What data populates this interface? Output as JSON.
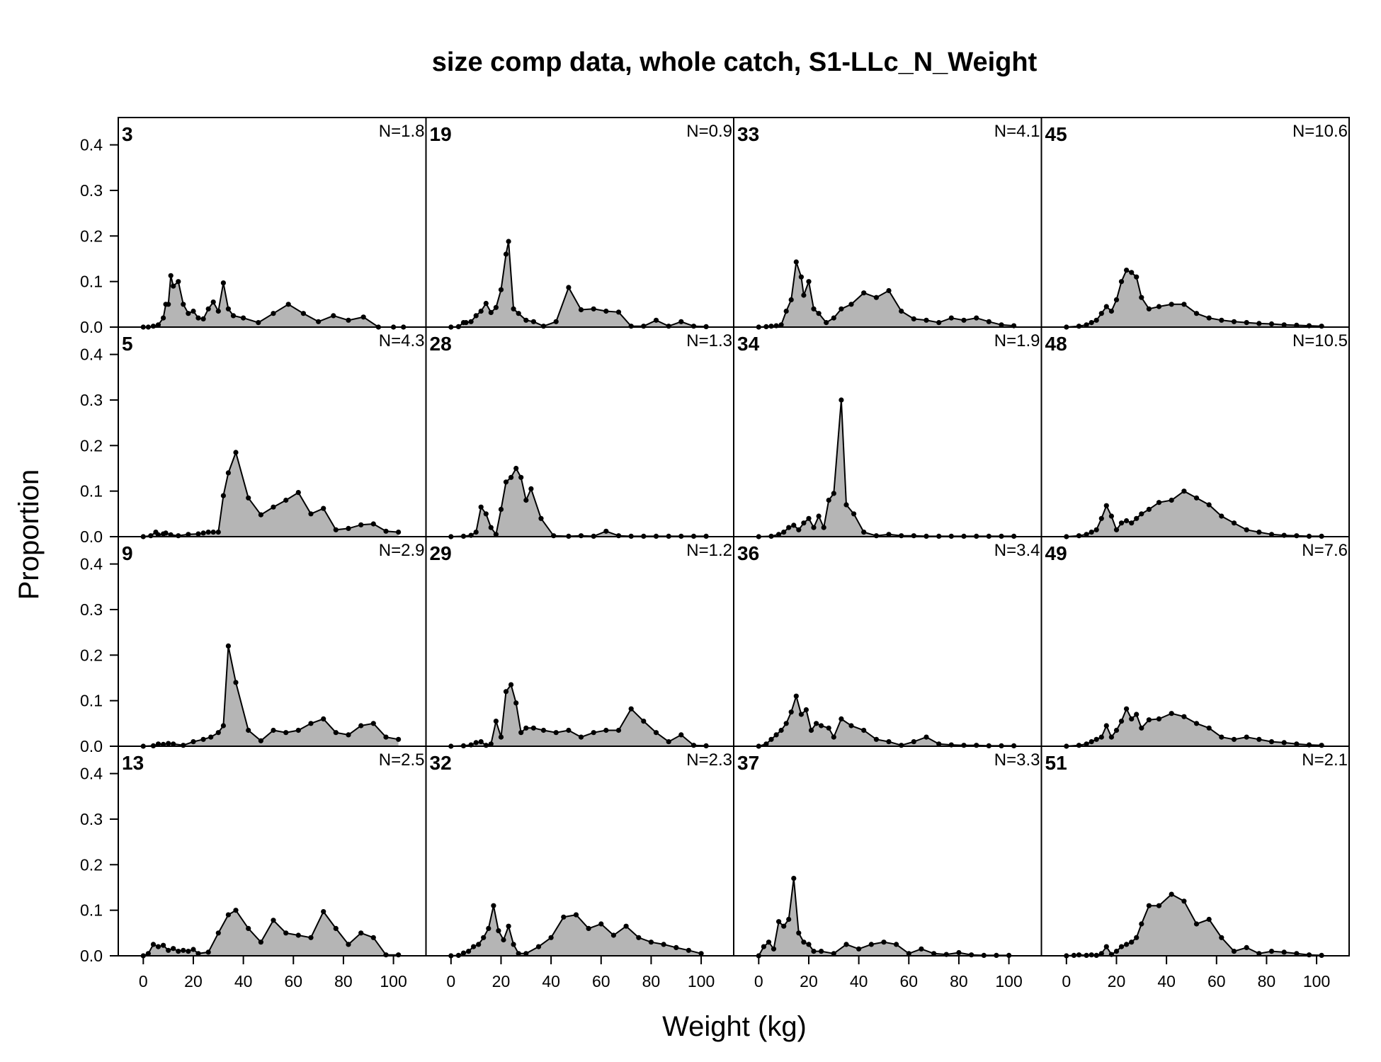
{
  "chart_data": {
    "type": "area",
    "title": "size comp data, whole catch, S1-LLc_N_Weight",
    "xlabel": "Weight (kg)",
    "ylabel": "Proportion",
    "xlim": [
      -10,
      113
    ],
    "ylim": [
      0,
      0.46
    ],
    "x_ticks": [
      0,
      20,
      40,
      60,
      80,
      100
    ],
    "y_ticks": [
      0.0,
      0.1,
      0.2,
      0.3,
      0.4
    ],
    "y_tick_labels": [
      "0.0",
      "0.1",
      "0.2",
      "0.3",
      "0.4"
    ],
    "layout": {
      "rows": 4,
      "cols": 4,
      "order": "column-major"
    },
    "fill_color": "#b5b5b5",
    "line_color": "#000000",
    "panels": [
      {
        "id": "3",
        "n_label": "N=1.8",
        "x": [
          0,
          2,
          4,
          6,
          8,
          9,
          10,
          11,
          12,
          14,
          16,
          18,
          20,
          22,
          24,
          26,
          28,
          30,
          32,
          34,
          36,
          40,
          46,
          52,
          58,
          64,
          70,
          76,
          82,
          88,
          94,
          100,
          104
        ],
        "y": [
          0,
          0,
          0.002,
          0.005,
          0.02,
          0.05,
          0.05,
          0.113,
          0.09,
          0.1,
          0.05,
          0.03,
          0.035,
          0.02,
          0.018,
          0.04,
          0.055,
          0.035,
          0.097,
          0.04,
          0.025,
          0.02,
          0.01,
          0.03,
          0.05,
          0.03,
          0.012,
          0.025,
          0.015,
          0.022,
          0,
          0,
          0
        ]
      },
      {
        "id": "5",
        "n_label": "N=4.3",
        "x": [
          0,
          3,
          5,
          6,
          8,
          9,
          11,
          14,
          18,
          22,
          24,
          26,
          28,
          30,
          32,
          34,
          37,
          42,
          47,
          52,
          57,
          62,
          67,
          72,
          77,
          82,
          87,
          92,
          97,
          102
        ],
        "y": [
          0,
          0.002,
          0.01,
          0.004,
          0.006,
          0.008,
          0.004,
          0.002,
          0.005,
          0.006,
          0.008,
          0.01,
          0.01,
          0.01,
          0.09,
          0.14,
          0.185,
          0.085,
          0.048,
          0.065,
          0.08,
          0.097,
          0.05,
          0.062,
          0.015,
          0.018,
          0.026,
          0.028,
          0.012,
          0.01
        ]
      },
      {
        "id": "9",
        "n_label": "N=2.9",
        "x": [
          0,
          4,
          6,
          8,
          10,
          12,
          16,
          20,
          24,
          27,
          30,
          32,
          34,
          37,
          42,
          47,
          52,
          57,
          62,
          67,
          72,
          77,
          82,
          87,
          92,
          97,
          102
        ],
        "y": [
          0,
          0.001,
          0.005,
          0.004,
          0.006,
          0.005,
          0.002,
          0.01,
          0.015,
          0.02,
          0.03,
          0.045,
          0.22,
          0.14,
          0.035,
          0.012,
          0.035,
          0.03,
          0.035,
          0.05,
          0.06,
          0.03,
          0.025,
          0.045,
          0.05,
          0.02,
          0.015
        ]
      },
      {
        "id": "13",
        "n_label": "N=2.5",
        "x": [
          0,
          2,
          4,
          6,
          8,
          10,
          12,
          14,
          16,
          18,
          20,
          22,
          26,
          30,
          34,
          37,
          42,
          47,
          52,
          57,
          62,
          67,
          72,
          77,
          82,
          87,
          92,
          97,
          102
        ],
        "y": [
          0,
          0.005,
          0.025,
          0.02,
          0.023,
          0.012,
          0.016,
          0.01,
          0.012,
          0.01,
          0.014,
          0.005,
          0.008,
          0.05,
          0.09,
          0.1,
          0.06,
          0.03,
          0.078,
          0.05,
          0.045,
          0.04,
          0.097,
          0.06,
          0.025,
          0.05,
          0.04,
          0.002,
          0.002
        ]
      },
      {
        "id": "19",
        "n_label": "N=0.9",
        "x": [
          0,
          3,
          5,
          6,
          8,
          10,
          12,
          14,
          16,
          18,
          20,
          22,
          23,
          25,
          27,
          30,
          33,
          37,
          42,
          47,
          52,
          57,
          62,
          67,
          72,
          77,
          82,
          87,
          92,
          97,
          102
        ],
        "y": [
          0,
          0.001,
          0.01,
          0.01,
          0.012,
          0.025,
          0.035,
          0.052,
          0.032,
          0.043,
          0.082,
          0.16,
          0.188,
          0.04,
          0.03,
          0.015,
          0.012,
          0.002,
          0.012,
          0.087,
          0.038,
          0.04,
          0.035,
          0.033,
          0.002,
          0.002,
          0.015,
          0.002,
          0.012,
          0.002,
          0.001
        ]
      },
      {
        "id": "28",
        "n_label": "N=1.3",
        "x": [
          0,
          5,
          8,
          10,
          12,
          14,
          16,
          18,
          20,
          22,
          24,
          26,
          28,
          30,
          32,
          36,
          41,
          47,
          52,
          57,
          62,
          67,
          72,
          77,
          82,
          87,
          92,
          97,
          102
        ],
        "y": [
          0,
          0.001,
          0.003,
          0.01,
          0.065,
          0.05,
          0.02,
          0.005,
          0.06,
          0.12,
          0.13,
          0.15,
          0.13,
          0.08,
          0.105,
          0.04,
          0.002,
          0.001,
          0.002,
          0.001,
          0.012,
          0.002,
          0.001,
          0.001,
          0.001,
          0.001,
          0.001,
          0.001,
          0.001
        ]
      },
      {
        "id": "29",
        "n_label": "N=1.2",
        "x": [
          0,
          5,
          8,
          10,
          12,
          14,
          16,
          18,
          20,
          22,
          24,
          26,
          28,
          30,
          33,
          37,
          42,
          47,
          52,
          57,
          62,
          67,
          72,
          77,
          82,
          87,
          92,
          97,
          102
        ],
        "y": [
          0,
          0.001,
          0.003,
          0.008,
          0.01,
          0.002,
          0.005,
          0.055,
          0.02,
          0.12,
          0.135,
          0.095,
          0.03,
          0.04,
          0.04,
          0.035,
          0.03,
          0.035,
          0.02,
          0.03,
          0.035,
          0.035,
          0.082,
          0.055,
          0.03,
          0.01,
          0.025,
          0.002,
          0.001
        ]
      },
      {
        "id": "32",
        "n_label": "N=2.3",
        "x": [
          0,
          3,
          5,
          7,
          9,
          11,
          13,
          15,
          17,
          19,
          21,
          23,
          25,
          27,
          30,
          35,
          40,
          45,
          50,
          55,
          60,
          65,
          70,
          75,
          80,
          85,
          90,
          95,
          100
        ],
        "y": [
          0,
          0.001,
          0.006,
          0.01,
          0.02,
          0.025,
          0.04,
          0.06,
          0.11,
          0.055,
          0.035,
          0.065,
          0.025,
          0.005,
          0.005,
          0.02,
          0.04,
          0.085,
          0.09,
          0.06,
          0.07,
          0.045,
          0.065,
          0.04,
          0.03,
          0.025,
          0.018,
          0.012,
          0.005
        ]
      },
      {
        "id": "33",
        "n_label": "N=4.1",
        "x": [
          0,
          3,
          5,
          7,
          9,
          11,
          13,
          15,
          17,
          18,
          20,
          22,
          24,
          27,
          30,
          33,
          37,
          42,
          47,
          52,
          57,
          62,
          67,
          72,
          77,
          82,
          87,
          92,
          97,
          102
        ],
        "y": [
          0,
          0.001,
          0.002,
          0.003,
          0.005,
          0.035,
          0.06,
          0.143,
          0.11,
          0.07,
          0.1,
          0.04,
          0.03,
          0.01,
          0.02,
          0.04,
          0.05,
          0.075,
          0.065,
          0.08,
          0.035,
          0.018,
          0.015,
          0.01,
          0.02,
          0.015,
          0.02,
          0.012,
          0.005,
          0.003
        ]
      },
      {
        "id": "34",
        "n_label": "N=1.9",
        "x": [
          0,
          5,
          8,
          10,
          12,
          14,
          16,
          18,
          20,
          22,
          24,
          26,
          28,
          30,
          33,
          35,
          38,
          42,
          47,
          52,
          57,
          62,
          67,
          72,
          77,
          82,
          87,
          92,
          97,
          102
        ],
        "y": [
          0,
          0.001,
          0.005,
          0.01,
          0.02,
          0.025,
          0.015,
          0.03,
          0.04,
          0.02,
          0.045,
          0.02,
          0.08,
          0.095,
          0.3,
          0.07,
          0.05,
          0.01,
          0.002,
          0.005,
          0.002,
          0.002,
          0.001,
          0.001,
          0.001,
          0.001,
          0.001,
          0.001,
          0.001,
          0.001
        ]
      },
      {
        "id": "36",
        "n_label": "N=3.4",
        "x": [
          0,
          3,
          5,
          7,
          9,
          11,
          13,
          15,
          17,
          19,
          21,
          23,
          25,
          28,
          30,
          33,
          37,
          42,
          47,
          52,
          57,
          62,
          67,
          72,
          77,
          82,
          87,
          92,
          97,
          102
        ],
        "y": [
          0,
          0.005,
          0.015,
          0.025,
          0.035,
          0.05,
          0.075,
          0.11,
          0.07,
          0.08,
          0.035,
          0.05,
          0.045,
          0.04,
          0.02,
          0.06,
          0.045,
          0.035,
          0.015,
          0.01,
          0.002,
          0.01,
          0.02,
          0.005,
          0.003,
          0.002,
          0.002,
          0.001,
          0.001,
          0.001
        ]
      },
      {
        "id": "37",
        "n_label": "N=3.3",
        "x": [
          0,
          2,
          4,
          6,
          8,
          10,
          12,
          14,
          16,
          18,
          20,
          22,
          25,
          30,
          35,
          40,
          45,
          50,
          55,
          60,
          65,
          70,
          75,
          80,
          85,
          90,
          95,
          100
        ],
        "y": [
          0,
          0.02,
          0.03,
          0.015,
          0.075,
          0.065,
          0.08,
          0.17,
          0.05,
          0.03,
          0.025,
          0.01,
          0.01,
          0.005,
          0.025,
          0.015,
          0.025,
          0.03,
          0.025,
          0.005,
          0.015,
          0.005,
          0.003,
          0.007,
          0.002,
          0.001,
          0.001,
          0.001
        ]
      },
      {
        "id": "45",
        "n_label": "N=10.6",
        "x": [
          0,
          5,
          8,
          10,
          12,
          14,
          16,
          18,
          20,
          22,
          24,
          26,
          28,
          30,
          33,
          37,
          42,
          47,
          52,
          57,
          62,
          67,
          72,
          77,
          82,
          87,
          92,
          97,
          102
        ],
        "y": [
          0,
          0.002,
          0.005,
          0.01,
          0.015,
          0.03,
          0.045,
          0.035,
          0.06,
          0.1,
          0.125,
          0.12,
          0.11,
          0.065,
          0.04,
          0.045,
          0.05,
          0.05,
          0.03,
          0.02,
          0.015,
          0.012,
          0.01,
          0.008,
          0.007,
          0.005,
          0.004,
          0.003,
          0.002
        ]
      },
      {
        "id": "48",
        "n_label": "N=10.5",
        "x": [
          0,
          5,
          8,
          10,
          12,
          14,
          16,
          18,
          20,
          22,
          24,
          26,
          28,
          30,
          33,
          37,
          42,
          47,
          52,
          57,
          62,
          67,
          72,
          77,
          82,
          87,
          92,
          97,
          102
        ],
        "y": [
          0,
          0.002,
          0.005,
          0.01,
          0.015,
          0.04,
          0.068,
          0.045,
          0.015,
          0.03,
          0.035,
          0.03,
          0.04,
          0.05,
          0.06,
          0.075,
          0.08,
          0.1,
          0.085,
          0.07,
          0.045,
          0.03,
          0.015,
          0.01,
          0.005,
          0.003,
          0.002,
          0.001,
          0.001
        ]
      },
      {
        "id": "49",
        "n_label": "N=7.6",
        "x": [
          0,
          5,
          8,
          10,
          12,
          14,
          16,
          18,
          20,
          22,
          24,
          26,
          28,
          30,
          33,
          37,
          42,
          47,
          52,
          57,
          62,
          67,
          72,
          77,
          82,
          87,
          92,
          97,
          102
        ],
        "y": [
          0,
          0.002,
          0.005,
          0.01,
          0.015,
          0.02,
          0.045,
          0.02,
          0.035,
          0.055,
          0.082,
          0.06,
          0.07,
          0.04,
          0.058,
          0.06,
          0.072,
          0.065,
          0.05,
          0.04,
          0.02,
          0.015,
          0.02,
          0.015,
          0.01,
          0.008,
          0.005,
          0.003,
          0.002
        ]
      },
      {
        "id": "51",
        "n_label": "N=2.1",
        "x": [
          0,
          3,
          5,
          8,
          10,
          12,
          14,
          16,
          18,
          20,
          22,
          24,
          26,
          28,
          30,
          33,
          37,
          42,
          47,
          52,
          57,
          62,
          67,
          72,
          77,
          82,
          87,
          92,
          97,
          102
        ],
        "y": [
          0,
          0.001,
          0.002,
          0.001,
          0.002,
          0.001,
          0.005,
          0.02,
          0.003,
          0.01,
          0.02,
          0.025,
          0.03,
          0.04,
          0.07,
          0.11,
          0.11,
          0.135,
          0.12,
          0.07,
          0.08,
          0.04,
          0.01,
          0.018,
          0.005,
          0.01,
          0.008,
          0.005,
          0.002,
          0.001
        ]
      }
    ]
  }
}
